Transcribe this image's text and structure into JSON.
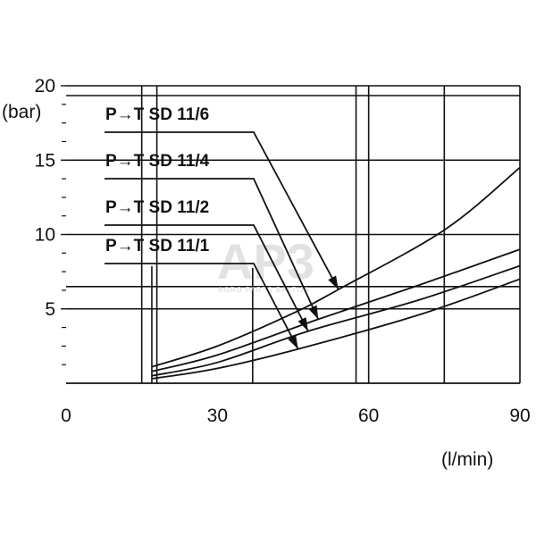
{
  "chart_data": {
    "type": "line",
    "title": "",
    "xlabel": "(l/min)",
    "ylabel": "(bar)",
    "xlim": [
      0,
      90
    ],
    "ylim": [
      0,
      20
    ],
    "x_ticks": [
      {
        "value": 0,
        "label": "0"
      },
      {
        "value": 30,
        "label": "30"
      },
      {
        "value": 60,
        "label": "60"
      },
      {
        "value": 90,
        "label": "90"
      }
    ],
    "y_ticks": [
      {
        "value": 5,
        "label": "5"
      },
      {
        "value": 10,
        "label": "10"
      },
      {
        "value": 15,
        "label": "15"
      },
      {
        "value": 20,
        "label": "20"
      }
    ],
    "grid": true,
    "series": [
      {
        "name": "P→T SD 11/6",
        "x": [
          17,
          30,
          45,
          54,
          75,
          90
        ],
        "y": [
          1.1,
          2.5,
          4.7,
          6.3,
          10.3,
          14.5
        ]
      },
      {
        "name": "P→T SD 11/4",
        "x": [
          17,
          30,
          50,
          70,
          90
        ],
        "y": [
          0.8,
          1.9,
          4.3,
          6.6,
          9.0
        ]
      },
      {
        "name": "P→T SD 11/2",
        "x": [
          17,
          30,
          48,
          70,
          90
        ],
        "y": [
          0.5,
          1.4,
          3.5,
          5.6,
          7.9
        ]
      },
      {
        "name": "P→T SD 11/1",
        "x": [
          17,
          30,
          46,
          70,
          90
        ],
        "y": [
          0.3,
          1.0,
          2.3,
          4.6,
          7.0
        ]
      }
    ]
  },
  "watermark": {
    "logo": "AP3",
    "tagline": "AGRO PARTS BALTIJA"
  }
}
